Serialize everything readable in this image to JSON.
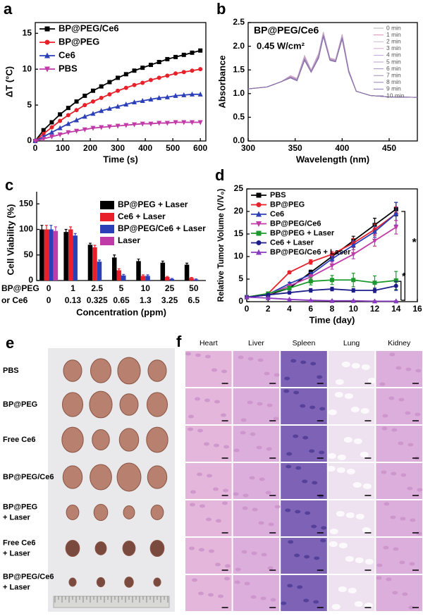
{
  "chart_data": [
    {
      "type": "line",
      "panel": "a",
      "xlabel": "Time (s)",
      "ylabel": "ΔT (°C)",
      "legend": "upper left",
      "frame": true,
      "x": [
        0,
        30,
        60,
        90,
        120,
        150,
        180,
        210,
        240,
        270,
        300,
        330,
        360,
        390,
        420,
        450,
        480,
        510,
        540,
        570,
        600
      ],
      "xlim": [
        0,
        620
      ],
      "xticks": [
        0,
        100,
        200,
        300,
        400,
        500,
        600
      ],
      "ylim": [
        0,
        16.5
      ],
      "yticks": [
        0,
        5,
        10,
        15
      ],
      "series": [
        {
          "name": "BP@PEG/Ce6",
          "color": "#000000",
          "marker": "square",
          "values": [
            0,
            1.5,
            2.6,
            3.7,
            4.6,
            5.5,
            6.3,
            7.0,
            7.6,
            8.2,
            8.8,
            9.3,
            9.8,
            10.2,
            10.6,
            11.0,
            11.4,
            11.7,
            12.0,
            12.3,
            12.6
          ]
        },
        {
          "name": "BP@PEG",
          "color": "#e8202a",
          "marker": "circle",
          "values": [
            0,
            1.0,
            1.9,
            2.8,
            3.6,
            4.3,
            5.0,
            5.5,
            6.0,
            6.5,
            7.0,
            7.4,
            7.8,
            8.1,
            8.5,
            8.8,
            9.1,
            9.4,
            9.6,
            9.8,
            10.0
          ]
        },
        {
          "name": "Ce6",
          "color": "#2b3fb8",
          "marker": "triangle",
          "values": [
            0,
            0.6,
            1.2,
            1.8,
            2.4,
            2.9,
            3.4,
            3.8,
            4.2,
            4.5,
            4.8,
            5.1,
            5.4,
            5.6,
            5.8,
            6.0,
            6.1,
            6.3,
            6.4,
            6.5,
            6.5
          ]
        },
        {
          "name": "PBS",
          "color": "#c03aa8",
          "marker": "down-triangle",
          "values": [
            0,
            0.3,
            0.6,
            0.9,
            1.2,
            1.4,
            1.6,
            1.8,
            1.9,
            2.0,
            2.1,
            2.2,
            2.3,
            2.4,
            2.4,
            2.5,
            2.5,
            2.6,
            2.6,
            2.6,
            2.6
          ]
        }
      ]
    },
    {
      "type": "line",
      "panel": "b",
      "xlabel": "Wavelength (nm)",
      "ylabel": "Absorbance",
      "legend": "upper right",
      "frame": true,
      "annotations": [
        "BP@PEG/Ce6",
        "0.45 W/cm²"
      ],
      "x": [
        300,
        320,
        335,
        345,
        352,
        360,
        367,
        375,
        380,
        387,
        393,
        400,
        407,
        415,
        430,
        450,
        480
      ],
      "xlim": [
        300,
        480
      ],
      "xticks": [
        300,
        350,
        400,
        450
      ],
      "ylim": [
        0,
        2.5
      ],
      "yticks": [
        {
          "value": 0,
          "label": "0.0"
        },
        0.5,
        {
          "value": 1,
          "label": "1.0"
        },
        1.5,
        {
          "value": 2,
          "label": "2.0"
        },
        2.5
      ],
      "series": [
        {
          "name": "0 min",
          "color": "#b0b0b0",
          "marker": "none",
          "values": [
            1.1,
            1.14,
            1.25,
            1.38,
            1.32,
            1.8,
            1.5,
            1.85,
            2.3,
            1.75,
            1.72,
            2.25,
            1.5,
            1.05,
            0.96,
            0.93,
            0.92
          ]
        },
        {
          "name": "1 min",
          "color": "#e08ab8",
          "marker": "none",
          "values": [
            1.1,
            1.14,
            1.25,
            1.375,
            1.315,
            1.79,
            1.495,
            1.84,
            2.29,
            1.745,
            1.715,
            2.24,
            1.495,
            1.05,
            0.96,
            0.93,
            0.92
          ]
        },
        {
          "name": "2 min",
          "color": "#c8b8c8",
          "marker": "none",
          "values": [
            1.1,
            1.14,
            1.25,
            1.37,
            1.31,
            1.78,
            1.49,
            1.83,
            2.28,
            1.74,
            1.71,
            2.23,
            1.49,
            1.05,
            0.96,
            0.93,
            0.92
          ]
        },
        {
          "name": "3 min",
          "color": "#d8a8d0",
          "marker": "none",
          "values": [
            1.1,
            1.14,
            1.25,
            1.365,
            1.305,
            1.77,
            1.485,
            1.82,
            2.27,
            1.735,
            1.705,
            2.22,
            1.485,
            1.05,
            0.96,
            0.93,
            0.92
          ]
        },
        {
          "name": "4 min",
          "color": "#c8a0d8",
          "marker": "none",
          "values": [
            1.1,
            1.14,
            1.25,
            1.36,
            1.3,
            1.76,
            1.48,
            1.81,
            2.26,
            1.73,
            1.7,
            2.21,
            1.48,
            1.05,
            0.96,
            0.93,
            0.92
          ]
        },
        {
          "name": "5 min",
          "color": "#b898c8",
          "marker": "none",
          "values": [
            1.1,
            1.14,
            1.25,
            1.355,
            1.295,
            1.75,
            1.475,
            1.8,
            2.25,
            1.725,
            1.695,
            2.2,
            1.475,
            1.05,
            0.96,
            0.93,
            0.92
          ]
        },
        {
          "name": "6 min",
          "color": "#a890c0",
          "marker": "none",
          "values": [
            1.1,
            1.14,
            1.25,
            1.35,
            1.29,
            1.74,
            1.47,
            1.79,
            2.24,
            1.72,
            1.69,
            2.19,
            1.47,
            1.05,
            0.96,
            0.93,
            0.92
          ]
        },
        {
          "name": "7 min",
          "color": "#a088b8",
          "marker": "none",
          "values": [
            1.1,
            1.14,
            1.25,
            1.345,
            1.285,
            1.73,
            1.465,
            1.78,
            2.23,
            1.715,
            1.685,
            2.18,
            1.465,
            1.05,
            0.96,
            0.93,
            0.92
          ]
        },
        {
          "name": "8 min",
          "color": "#9880b8",
          "marker": "none",
          "values": [
            1.1,
            1.14,
            1.25,
            1.34,
            1.28,
            1.72,
            1.46,
            1.77,
            2.22,
            1.71,
            1.68,
            2.17,
            1.46,
            1.05,
            0.96,
            0.93,
            0.92
          ]
        },
        {
          "name": "9 min",
          "color": "#9078b0",
          "marker": "none",
          "values": [
            1.1,
            1.14,
            1.25,
            1.335,
            1.275,
            1.71,
            1.455,
            1.76,
            2.21,
            1.705,
            1.675,
            2.16,
            1.455,
            1.05,
            0.96,
            0.93,
            0.92
          ]
        },
        {
          "name": "10 min",
          "color": "#8870a8",
          "marker": "none",
          "values": [
            1.1,
            1.14,
            1.25,
            1.33,
            1.27,
            1.7,
            1.45,
            1.75,
            2.2,
            1.7,
            1.67,
            2.15,
            1.45,
            1.05,
            0.96,
            0.93,
            0.92
          ]
        }
      ]
    },
    {
      "type": "bar",
      "panel": "c",
      "xlabel": "Concentration (ppm)",
      "ylabel": "Cell Viability (%)",
      "legend": "upper right",
      "frame": false,
      "categories": [
        "0",
        "1",
        "2.5",
        "5",
        "10",
        "25",
        "50"
      ],
      "categories_2": [
        "0",
        "0.13",
        "0.325",
        "0.65",
        "1.3",
        "3.25",
        "6.5"
      ],
      "category_row_labels": [
        "BP@PEG",
        "or Ce6"
      ],
      "ylim": [
        0,
        160
      ],
      "yticks": [
        0,
        50,
        100,
        150
      ],
      "series": [
        {
          "name": "BP@PEG + Laser",
          "color": "#000000",
          "values": [
            100,
            95,
            70,
            45,
            38,
            35,
            31
          ],
          "errors": [
            8,
            5,
            3,
            5,
            4,
            3,
            3
          ]
        },
        {
          "name": "Ce6 + Laser",
          "color": "#e8202a",
          "values": [
            100,
            100,
            65,
            20,
            9,
            7,
            5
          ],
          "errors": [
            8,
            5,
            4,
            3,
            2,
            1,
            1
          ]
        },
        {
          "name": "BP@PEG/Ce6 + Laser",
          "color": "#2b3fb8",
          "values": [
            100,
            88,
            37,
            10,
            9,
            3,
            2
          ],
          "errors": [
            8,
            4,
            3,
            2,
            2,
            1,
            1
          ]
        },
        {
          "name": "Laser",
          "color": "#c03aa8",
          "values": [
            97,
            null,
            null,
            null,
            null,
            null,
            null
          ],
          "errors": [
            8,
            null,
            null,
            null,
            null,
            null,
            null
          ]
        }
      ]
    },
    {
      "type": "line",
      "panel": "d",
      "xlabel": "Time (day)",
      "ylabel": "Relative Tumor Volume (V/V₀)",
      "legend": "upper left",
      "frame": true,
      "annotations": [
        "*",
        "*"
      ],
      "x": [
        0,
        2,
        4,
        6,
        8,
        10,
        12,
        14
      ],
      "xlim": [
        0,
        16
      ],
      "xticks": [
        0,
        2,
        4,
        6,
        8,
        10,
        12,
        14,
        16
      ],
      "ylim": [
        0,
        25
      ],
      "yticks": [
        0,
        5,
        10,
        15,
        20,
        25
      ],
      "series": [
        {
          "name": "PBS",
          "color": "#000000",
          "marker": "square",
          "values": [
            1,
            1.5,
            3,
            6.5,
            10,
            13.5,
            17,
            20.5
          ],
          "errors": [
            0,
            0.2,
            0.3,
            0.5,
            0.6,
            1,
            1.5,
            1.5
          ]
        },
        {
          "name": "BP@PEG",
          "color": "#e8202a",
          "marker": "circle",
          "values": [
            1,
            1.8,
            6.5,
            8.8,
            10.5,
            13,
            16,
            19.5
          ],
          "errors": [
            0,
            0.2,
            0.3,
            0.5,
            0.6,
            1,
            1.2,
            1.5
          ]
        },
        {
          "name": "Ce6",
          "color": "#2b3fb8",
          "marker": "triangle",
          "values": [
            1,
            1.6,
            4,
            6,
            9.5,
            12.5,
            15.5,
            19.5
          ],
          "errors": [
            0,
            0.2,
            0.3,
            0.5,
            0.6,
            1,
            1.2,
            2.5
          ]
        },
        {
          "name": "BP@PEG/Ce6",
          "color": "#c03aa8",
          "marker": "down-triangle",
          "values": [
            1,
            1.5,
            3.5,
            5.5,
            8,
            10.5,
            13.5,
            16.5
          ],
          "errors": [
            0,
            0.2,
            0.3,
            0.5,
            0.8,
            1,
            1.2,
            1.5
          ]
        },
        {
          "name": "BP@PEG + Laser",
          "color": "#1a9a2a",
          "marker": "square",
          "values": [
            1,
            1.8,
            3,
            4.5,
            4.8,
            4.8,
            4.2,
            4.7
          ],
          "errors": [
            0,
            0.2,
            0.4,
            0.8,
            1,
            1.5,
            1.5,
            2
          ]
        },
        {
          "name": "Ce6 + Laser",
          "color": "#1c1c8a",
          "marker": "circle",
          "values": [
            1,
            1.5,
            2,
            2.5,
            2.8,
            2.5,
            2.5,
            3.5
          ],
          "errors": [
            0,
            0.2,
            0.3,
            0.4,
            0.4,
            0.4,
            0.5,
            1
          ]
        },
        {
          "name": "BP@PEG/Ce6 + Laser",
          "color": "#8a3ac0",
          "marker": "triangle",
          "values": [
            1,
            0.8,
            0.5,
            0.3,
            0.2,
            0.2,
            0.1,
            0.1
          ],
          "errors": [
            0,
            0.1,
            0.1,
            0.1,
            0.1,
            0.1,
            0.1,
            0.1
          ]
        }
      ]
    }
  ],
  "panel_e": {
    "panel": "e",
    "rows": [
      [
        "PBS"
      ],
      [
        "BP@PEG"
      ],
      [
        "Free Ce6"
      ],
      [
        "BP@PEG/Ce6"
      ],
      [
        "BP@PEG",
        "+ Laser"
      ],
      [
        "Free Ce6",
        "+ Laser"
      ],
      [
        "BP@PEG/Ce6",
        "+ Laser"
      ]
    ]
  },
  "panel_f": {
    "panel": "f",
    "columns": [
      "Heart",
      "Liver",
      "Spleen",
      "Lung",
      "Kidney"
    ]
  }
}
